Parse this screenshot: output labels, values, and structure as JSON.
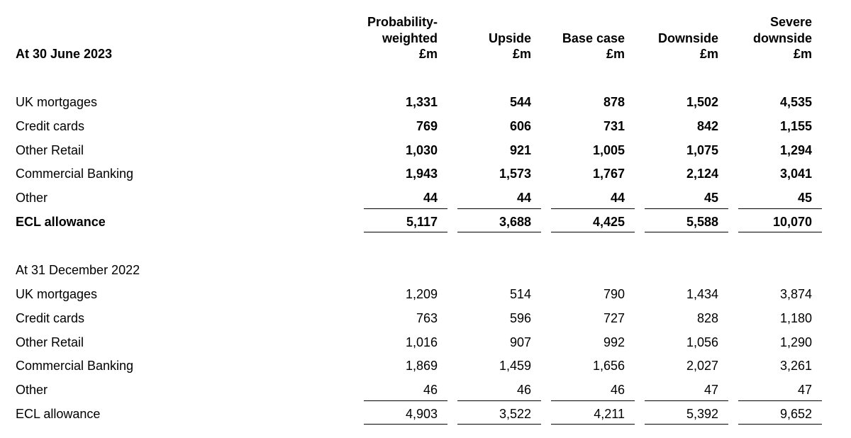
{
  "columns": [
    [
      "Probability-",
      "weighted",
      "£m"
    ],
    [
      "Upside",
      "£m"
    ],
    [
      "Base case",
      "£m"
    ],
    [
      "Downside",
      "£m"
    ],
    [
      "Severe",
      "downside",
      "£m"
    ]
  ],
  "sections": [
    {
      "title": "At 30 June 2023",
      "rows": [
        {
          "label": "UK mortgages",
          "values": [
            "1,331",
            "544",
            "878",
            "1,502",
            "4,535"
          ]
        },
        {
          "label": "Credit cards",
          "values": [
            "769",
            "606",
            "731",
            "842",
            "1,155"
          ]
        },
        {
          "label": "Other Retail",
          "values": [
            "1,030",
            "921",
            "1,005",
            "1,075",
            "1,294"
          ]
        },
        {
          "label": "Commercial Banking",
          "values": [
            "1,943",
            "1,573",
            "1,767",
            "2,124",
            "3,041"
          ]
        },
        {
          "label": "Other",
          "values": [
            "44",
            "44",
            "44",
            "45",
            "45"
          ]
        }
      ],
      "total": {
        "label": "ECL allowance",
        "values": [
          "5,117",
          "3,688",
          "4,425",
          "5,588",
          "10,070"
        ]
      }
    },
    {
      "title": "At 31 December 2022",
      "rows": [
        {
          "label": "UK mortgages",
          "values": [
            "1,209",
            "514",
            "790",
            "1,434",
            "3,874"
          ]
        },
        {
          "label": "Credit cards",
          "values": [
            "763",
            "596",
            "727",
            "828",
            "1,180"
          ]
        },
        {
          "label": "Other Retail",
          "values": [
            "1,016",
            "907",
            "992",
            "1,056",
            "1,290"
          ]
        },
        {
          "label": "Commercial Banking",
          "values": [
            "1,869",
            "1,459",
            "1,656",
            "2,027",
            "3,261"
          ]
        },
        {
          "label": "Other",
          "values": [
            "46",
            "46",
            "46",
            "47",
            "47"
          ]
        }
      ],
      "total": {
        "label": "ECL allowance",
        "values": [
          "4,903",
          "3,522",
          "4,211",
          "5,392",
          "9,652"
        ]
      }
    }
  ]
}
